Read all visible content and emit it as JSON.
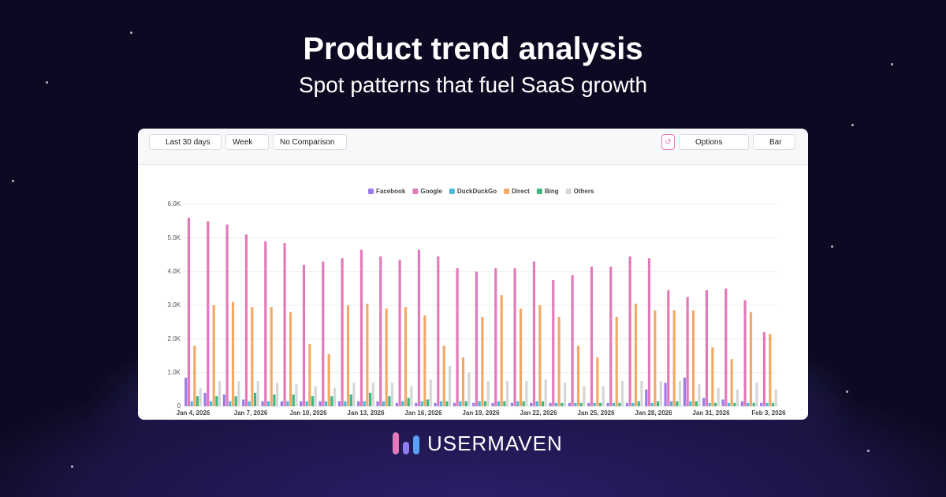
{
  "header": {
    "title": "Product trend analysis",
    "subtitle": "Spot patterns that fuel SaaS growth"
  },
  "toolbar": {
    "range": "Last 30 days",
    "interval": "Week",
    "comparison": "No Comparison",
    "options": "Options",
    "chart_type": "Bar"
  },
  "brand": "USERMAVEN",
  "chart_data": {
    "type": "bar",
    "categories": [
      "Jan 4, 2026",
      null,
      null,
      "Jan 7, 2026",
      null,
      null,
      "Jan 10, 2026",
      null,
      null,
      "Jan 13, 2026",
      null,
      null,
      "Jan 16, 2026",
      null,
      null,
      "Jan 19, 2026",
      null,
      null,
      "Jan 22, 2026",
      null,
      null,
      "Jan 25, 2026",
      null,
      null,
      "Jan 28, 2026",
      null,
      null,
      "Jan 31, 2026",
      null,
      null,
      "Feb 3, 2026"
    ],
    "series": [
      {
        "name": "Facebook",
        "color": "#9b7be8",
        "values": [
          850,
          400,
          350,
          200,
          150,
          150,
          150,
          150,
          150,
          150,
          150,
          100,
          100,
          100,
          100,
          100,
          100,
          100,
          100,
          100,
          100,
          100,
          100,
          100,
          500,
          700,
          850,
          250,
          200,
          150,
          100
        ]
      },
      {
        "name": "Google",
        "color": "#e27ab9",
        "values": [
          5600,
          5500,
          5400,
          5100,
          4900,
          4850,
          4200,
          4300,
          4400,
          4650,
          4450,
          4350,
          4650,
          4450,
          4100,
          4000,
          4100,
          4100,
          4300,
          3750,
          3900,
          4150,
          4150,
          4450,
          4400,
          3450,
          3250,
          3450,
          3500,
          3150,
          2200
        ]
      },
      {
        "name": "DuckDuckGo",
        "color": "#4bb8d8",
        "values": [
          150,
          150,
          150,
          150,
          150,
          150,
          150,
          150,
          150,
          150,
          150,
          150,
          150,
          150,
          150,
          150,
          150,
          150,
          150,
          100,
          100,
          100,
          100,
          100,
          100,
          150,
          150,
          100,
          100,
          100,
          100
        ]
      },
      {
        "name": "Direct",
        "color": "#f2a968",
        "values": [
          1800,
          3000,
          3100,
          2950,
          2950,
          2800,
          1850,
          1550,
          3000,
          3050,
          2900,
          2950,
          2700,
          1800,
          1450,
          2650,
          3300,
          2900,
          3000,
          2650,
          1800,
          1450,
          2650,
          3050,
          2850,
          2850,
          2850,
          1750,
          1400,
          2800,
          2150
        ]
      },
      {
        "name": "Bing",
        "color": "#3fb67f",
        "values": [
          300,
          300,
          300,
          400,
          350,
          350,
          300,
          300,
          350,
          400,
          300,
          250,
          200,
          150,
          150,
          150,
          150,
          150,
          150,
          100,
          100,
          100,
          100,
          150,
          150,
          150,
          150,
          100,
          100,
          100,
          100
        ]
      },
      {
        "name": "Others",
        "color": "#d6d6d6",
        "values": [
          550,
          750,
          750,
          750,
          700,
          650,
          600,
          550,
          700,
          700,
          700,
          600,
          800,
          1200,
          1000,
          750,
          750,
          750,
          800,
          700,
          600,
          600,
          750,
          750,
          750,
          750,
          650,
          550,
          500,
          700,
          500
        ]
      }
    ],
    "ylim": [
      0,
      6000
    ],
    "yticks": [
      0,
      {
        "value": 1000,
        "label": "1.0K"
      },
      {
        "value": 2000,
        "label": "2.0K"
      },
      {
        "value": 3000,
        "label": "3.0K"
      },
      {
        "value": 4000,
        "label": "4.0K"
      },
      {
        "value": 5000,
        "label": "5.0K"
      },
      {
        "value": 6000,
        "label": "6.0K"
      }
    ],
    "grid": true
  }
}
